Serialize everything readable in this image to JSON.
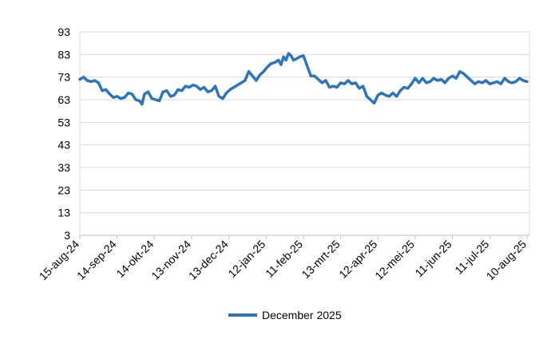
{
  "chart_data": {
    "type": "line",
    "title": "",
    "xlabel": "",
    "ylabel": "",
    "x_range": [
      "2024-08-15",
      "2025-08-12"
    ],
    "ylim": [
      3,
      93
    ],
    "y_ticks": [
      "93",
      "83",
      "73",
      "63",
      "53",
      "43",
      "33",
      "23",
      "13",
      "3"
    ],
    "x_ticks": [
      {
        "date": "2024-08-15",
        "label": "15-aug-24"
      },
      {
        "date": "2024-09-14",
        "label": "14-sep-24"
      },
      {
        "date": "2024-10-14",
        "label": "14-okt-24"
      },
      {
        "date": "2024-11-13",
        "label": "13-nov-24"
      },
      {
        "date": "2024-12-13",
        "label": "13-dec-24"
      },
      {
        "date": "2025-01-12",
        "label": "12-jan-25"
      },
      {
        "date": "2025-02-11",
        "label": "11-feb-25"
      },
      {
        "date": "2025-03-13",
        "label": "13-mrt-25"
      },
      {
        "date": "2025-04-12",
        "label": "12-apr-25"
      },
      {
        "date": "2025-05-12",
        "label": "12-mei-25"
      },
      {
        "date": "2025-06-11",
        "label": "11-jun-25"
      },
      {
        "date": "2025-07-11",
        "label": "11-jul-25"
      },
      {
        "date": "2025-08-10",
        "label": "10-aug-25"
      }
    ],
    "grid": "horizontal",
    "legend": "bottom",
    "series": [
      {
        "name": "December 2025",
        "color": "#2e75b6",
        "points": [
          [
            "2024-08-15",
            72.0
          ],
          [
            "2024-08-18",
            73.0
          ],
          [
            "2024-08-21",
            71.5
          ],
          [
            "2024-08-24",
            71.0
          ],
          [
            "2024-08-27",
            71.5
          ],
          [
            "2024-08-30",
            70.5
          ],
          [
            "2024-09-02",
            67.0
          ],
          [
            "2024-09-05",
            67.5
          ],
          [
            "2024-09-08",
            65.5
          ],
          [
            "2024-09-11",
            64.0
          ],
          [
            "2024-09-14",
            64.5
          ],
          [
            "2024-09-17",
            63.5
          ],
          [
            "2024-09-20",
            64.0
          ],
          [
            "2024-09-23",
            66.0
          ],
          [
            "2024-09-26",
            65.5
          ],
          [
            "2024-09-29",
            63.0
          ],
          [
            "2024-10-02",
            62.5
          ],
          [
            "2024-10-04",
            61.0
          ],
          [
            "2024-10-06",
            65.5
          ],
          [
            "2024-10-09",
            66.5
          ],
          [
            "2024-10-12",
            63.5
          ],
          [
            "2024-10-15",
            63.0
          ],
          [
            "2024-10-18",
            62.5
          ],
          [
            "2024-10-21",
            66.5
          ],
          [
            "2024-10-24",
            67.0
          ],
          [
            "2024-10-27",
            64.5
          ],
          [
            "2024-10-30",
            65.0
          ],
          [
            "2024-11-02",
            67.5
          ],
          [
            "2024-11-05",
            67.0
          ],
          [
            "2024-11-08",
            69.0
          ],
          [
            "2024-11-11",
            68.5
          ],
          [
            "2024-11-14",
            69.5
          ],
          [
            "2024-11-17",
            69.0
          ],
          [
            "2024-11-20",
            67.5
          ],
          [
            "2024-11-23",
            68.5
          ],
          [
            "2024-11-26",
            66.5
          ],
          [
            "2024-11-29",
            67.0
          ],
          [
            "2024-12-02",
            69.0
          ],
          [
            "2024-12-05",
            64.5
          ],
          [
            "2024-12-08",
            63.5
          ],
          [
            "2024-12-11",
            66.0
          ],
          [
            "2024-12-14",
            67.5
          ],
          [
            "2024-12-17",
            68.5
          ],
          [
            "2024-12-20",
            69.5
          ],
          [
            "2024-12-23",
            70.5
          ],
          [
            "2024-12-26",
            71.5
          ],
          [
            "2024-12-29",
            75.5
          ],
          [
            "2025-01-01",
            73.5
          ],
          [
            "2025-01-04",
            71.5
          ],
          [
            "2025-01-07",
            74.0
          ],
          [
            "2025-01-10",
            75.5
          ],
          [
            "2025-01-13",
            77.5
          ],
          [
            "2025-01-16",
            79.0
          ],
          [
            "2025-01-19",
            79.5
          ],
          [
            "2025-01-22",
            80.5
          ],
          [
            "2025-01-24",
            78.5
          ],
          [
            "2025-01-26",
            82.0
          ],
          [
            "2025-01-28",
            80.5
          ],
          [
            "2025-01-30",
            83.5
          ],
          [
            "2025-02-01",
            82.5
          ],
          [
            "2025-02-03",
            80.5
          ],
          [
            "2025-02-05",
            81.0
          ],
          [
            "2025-02-08",
            82.0
          ],
          [
            "2025-02-11",
            82.5
          ],
          [
            "2025-02-14",
            78.0
          ],
          [
            "2025-02-17",
            73.5
          ],
          [
            "2025-02-20",
            73.5
          ],
          [
            "2025-02-23",
            72.0
          ],
          [
            "2025-02-26",
            70.5
          ],
          [
            "2025-03-01",
            71.5
          ],
          [
            "2025-03-04",
            68.5
          ],
          [
            "2025-03-07",
            69.0
          ],
          [
            "2025-03-10",
            68.5
          ],
          [
            "2025-03-13",
            70.5
          ],
          [
            "2025-03-16",
            70.0
          ],
          [
            "2025-03-19",
            71.5
          ],
          [
            "2025-03-22",
            70.0
          ],
          [
            "2025-03-25",
            70.5
          ],
          [
            "2025-03-28",
            68.0
          ],
          [
            "2025-03-31",
            69.0
          ],
          [
            "2025-04-03",
            64.5
          ],
          [
            "2025-04-06",
            63.0
          ],
          [
            "2025-04-09",
            61.5
          ],
          [
            "2025-04-12",
            65.0
          ],
          [
            "2025-04-15",
            66.0
          ],
          [
            "2025-04-18",
            65.0
          ],
          [
            "2025-04-21",
            64.5
          ],
          [
            "2025-04-24",
            66.0
          ],
          [
            "2025-04-27",
            64.5
          ],
          [
            "2025-04-30",
            67.0
          ],
          [
            "2025-05-03",
            68.5
          ],
          [
            "2025-05-06",
            68.0
          ],
          [
            "2025-05-09",
            70.0
          ],
          [
            "2025-05-12",
            72.5
          ],
          [
            "2025-05-15",
            70.5
          ],
          [
            "2025-05-18",
            72.5
          ],
          [
            "2025-05-21",
            70.5
          ],
          [
            "2025-05-24",
            71.0
          ],
          [
            "2025-05-27",
            72.5
          ],
          [
            "2025-05-30",
            71.5
          ],
          [
            "2025-06-02",
            72.0
          ],
          [
            "2025-06-05",
            70.5
          ],
          [
            "2025-06-08",
            72.5
          ],
          [
            "2025-06-11",
            73.5
          ],
          [
            "2025-06-14",
            72.5
          ],
          [
            "2025-06-17",
            75.5
          ],
          [
            "2025-06-20",
            74.5
          ],
          [
            "2025-06-23",
            73.0
          ],
          [
            "2025-06-26",
            71.5
          ],
          [
            "2025-06-29",
            70.0
          ],
          [
            "2025-07-02",
            71.0
          ],
          [
            "2025-07-05",
            70.5
          ],
          [
            "2025-07-08",
            71.5
          ],
          [
            "2025-07-11",
            70.0
          ],
          [
            "2025-07-14",
            70.5
          ],
          [
            "2025-07-17",
            71.0
          ],
          [
            "2025-07-20",
            70.0
          ],
          [
            "2025-07-23",
            72.5
          ],
          [
            "2025-07-26",
            71.0
          ],
          [
            "2025-07-29",
            70.5
          ],
          [
            "2025-08-01",
            71.0
          ],
          [
            "2025-08-04",
            72.5
          ],
          [
            "2025-08-07",
            71.5
          ],
          [
            "2025-08-10",
            71.0
          ]
        ]
      }
    ]
  }
}
